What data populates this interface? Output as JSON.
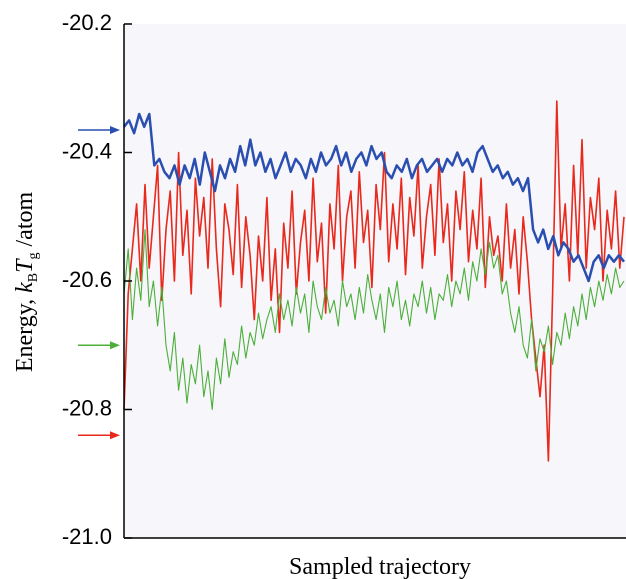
{
  "chart_data": {
    "type": "line",
    "ylabel": [
      "Energy,  ",
      "k",
      "B",
      "T",
      "g",
      " /atom"
    ],
    "xlabel": "Sampled trajectory",
    "ylim": [
      -21.0,
      -20.2
    ],
    "yticks": [
      -20.2,
      -20.4,
      -20.6,
      -20.8,
      {
        "value": -21.0,
        "label": "-21.0"
      }
    ],
    "series": [
      {
        "color": "#e8291c",
        "arrow": -20.84,
        "values": [
          -20.8,
          -20.62,
          -20.55,
          -20.48,
          -20.6,
          -20.45,
          -20.58,
          -20.5,
          -20.42,
          -20.63,
          -20.52,
          -20.46,
          -20.6,
          -20.4,
          -20.56,
          -20.49,
          -20.62,
          -20.44,
          -20.53,
          -20.47,
          -20.58,
          -20.41,
          -20.55,
          -20.64,
          -20.48,
          -20.52,
          -20.59,
          -20.45,
          -20.61,
          -20.5,
          -20.56,
          -20.66,
          -20.53,
          -20.6,
          -20.47,
          -20.63,
          -20.55,
          -20.68,
          -20.51,
          -20.58,
          -20.46,
          -20.62,
          -20.54,
          -20.49,
          -20.6,
          -20.44,
          -20.57,
          -20.51,
          -20.65,
          -20.48,
          -20.55,
          -20.42,
          -20.6,
          -20.5,
          -20.46,
          -20.58,
          -20.43,
          -20.54,
          -20.49,
          -20.61,
          -20.45,
          -20.52,
          -20.4,
          -20.57,
          -20.48,
          -20.55,
          -20.44,
          -20.59,
          -20.47,
          -20.53,
          -20.42,
          -20.58,
          -20.5,
          -20.45,
          -20.56,
          -20.41,
          -20.54,
          -20.48,
          -20.6,
          -20.46,
          -20.52,
          -20.43,
          -20.57,
          -20.49,
          -20.55,
          -20.44,
          -20.61,
          -20.5,
          -20.56,
          -20.53,
          -20.6,
          -20.48,
          -20.58,
          -20.52,
          -20.62,
          -20.5,
          -20.57,
          -20.66,
          -20.72,
          -20.78,
          -20.7,
          -20.88,
          -20.62,
          -20.32,
          -20.55,
          -20.48,
          -20.6,
          -20.42,
          -20.56,
          -20.38,
          -20.58,
          -20.47,
          -20.52,
          -20.44,
          -20.6,
          -20.49,
          -20.55,
          -20.46,
          -20.58,
          -20.5
        ]
      },
      {
        "color": "#4caf3a",
        "arrow": -20.7,
        "values": [
          -20.62,
          -20.55,
          -20.66,
          -20.58,
          -20.63,
          -20.52,
          -20.64,
          -20.6,
          -20.67,
          -20.61,
          -20.7,
          -20.74,
          -20.68,
          -20.77,
          -20.72,
          -20.79,
          -20.73,
          -20.76,
          -20.7,
          -20.78,
          -20.74,
          -20.8,
          -20.72,
          -20.76,
          -20.69,
          -20.75,
          -20.71,
          -20.73,
          -20.67,
          -20.72,
          -20.68,
          -20.7,
          -20.65,
          -20.69,
          -20.66,
          -20.64,
          -20.68,
          -20.62,
          -20.66,
          -20.63,
          -20.67,
          -20.61,
          -20.65,
          -20.62,
          -20.68,
          -20.6,
          -20.64,
          -20.66,
          -20.61,
          -20.65,
          -20.63,
          -20.67,
          -20.6,
          -20.64,
          -20.62,
          -20.66,
          -20.61,
          -20.65,
          -20.59,
          -20.63,
          -20.66,
          -20.62,
          -20.68,
          -20.61,
          -20.64,
          -20.6,
          -20.66,
          -20.63,
          -20.67,
          -20.62,
          -20.64,
          -20.6,
          -20.65,
          -20.61,
          -20.66,
          -20.62,
          -20.63,
          -20.59,
          -20.64,
          -20.6,
          -20.62,
          -20.58,
          -20.63,
          -20.57,
          -20.6,
          -20.55,
          -20.59,
          -20.54,
          -20.58,
          -20.56,
          -20.62,
          -20.6,
          -20.65,
          -20.68,
          -20.64,
          -20.7,
          -20.72,
          -20.66,
          -20.74,
          -20.69,
          -20.71,
          -20.67,
          -20.73,
          -20.68,
          -20.7,
          -20.65,
          -20.69,
          -20.64,
          -20.67,
          -20.62,
          -20.66,
          -20.61,
          -20.64,
          -20.6,
          -20.63,
          -20.59,
          -20.62,
          -20.58,
          -20.61,
          -20.6
        ]
      },
      {
        "color": "#2a4fb0",
        "arrow": -20.365,
        "values": [
          -20.36,
          -20.35,
          -20.37,
          -20.34,
          -20.36,
          -20.34,
          -20.42,
          -20.41,
          -20.43,
          -20.44,
          -20.42,
          -20.45,
          -20.42,
          -20.44,
          -20.41,
          -20.45,
          -20.4,
          -20.43,
          -20.46,
          -20.42,
          -20.44,
          -20.41,
          -20.43,
          -20.39,
          -20.42,
          -20.38,
          -20.42,
          -20.4,
          -20.43,
          -20.41,
          -20.44,
          -20.42,
          -20.4,
          -20.43,
          -20.41,
          -20.42,
          -20.44,
          -20.41,
          -20.43,
          -20.4,
          -20.42,
          -20.41,
          -20.39,
          -20.42,
          -20.4,
          -20.43,
          -20.41,
          -20.4,
          -20.42,
          -20.39,
          -20.41,
          -20.4,
          -20.43,
          -20.44,
          -20.42,
          -20.43,
          -20.41,
          -20.44,
          -20.42,
          -20.41,
          -20.43,
          -20.42,
          -20.41,
          -20.43,
          -20.41,
          -20.42,
          -20.4,
          -20.42,
          -20.41,
          -20.43,
          -20.4,
          -20.39,
          -20.41,
          -20.43,
          -20.42,
          -20.44,
          -20.43,
          -20.45,
          -20.44,
          -20.46,
          -20.44,
          -20.52,
          -20.54,
          -20.52,
          -20.55,
          -20.53,
          -20.56,
          -20.54,
          -20.55,
          -20.57,
          -20.56,
          -20.58,
          -20.6,
          -20.57,
          -20.56,
          -20.58,
          -20.56,
          -20.57,
          -20.56,
          -20.57
        ]
      }
    ]
  }
}
